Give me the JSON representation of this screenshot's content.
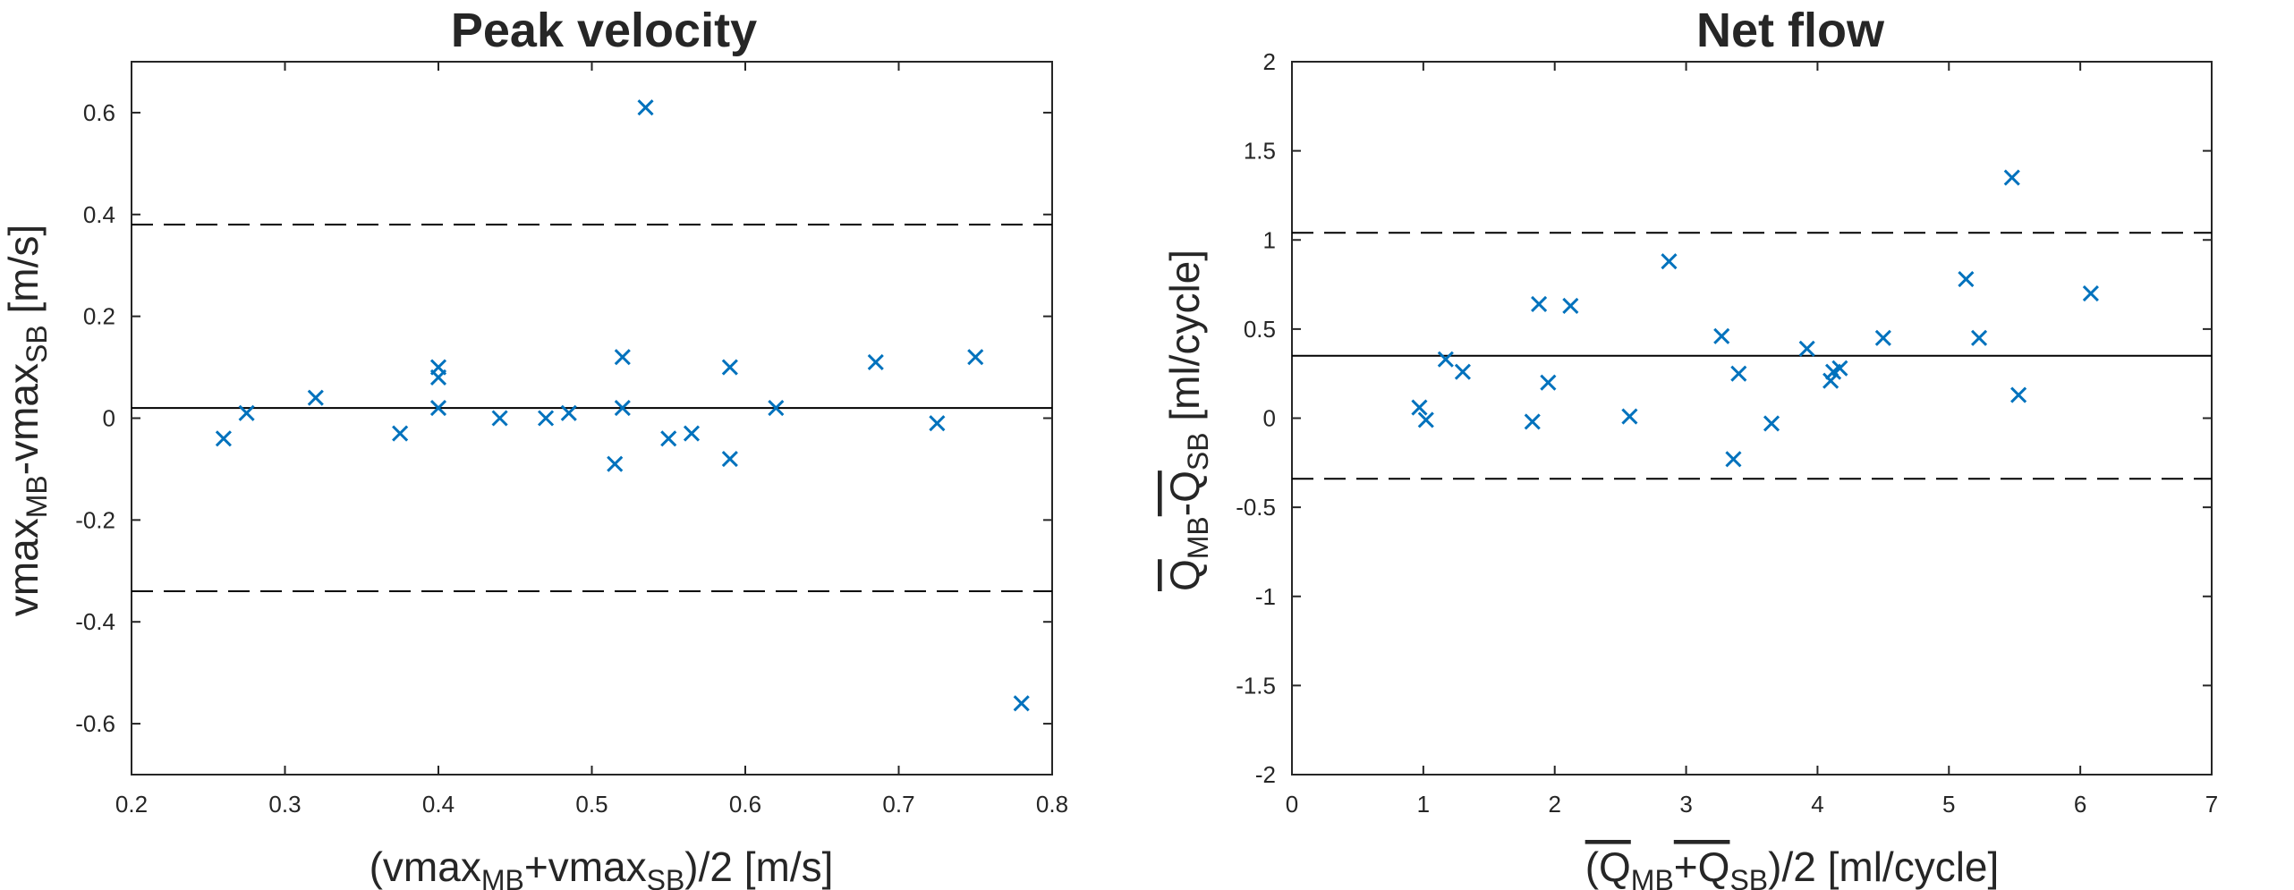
{
  "chart_data": [
    {
      "type": "scatter",
      "title": "Peak velocity",
      "xlabel": {
        "parts": [
          {
            "t": "(vmax"
          },
          {
            "t": "MB",
            "sub": true
          },
          {
            "t": "+vmax"
          },
          {
            "t": "SB",
            "sub": true
          },
          {
            "t": ")/2   [m/s]"
          }
        ]
      },
      "ylabel": {
        "parts": [
          {
            "t": "vmax"
          },
          {
            "t": "MB",
            "sub": true
          },
          {
            "t": "-vmax"
          },
          {
            "t": "SB",
            "sub": true
          },
          {
            "t": "   [m/s]"
          }
        ]
      },
      "xlim": [
        0.2,
        0.8
      ],
      "ylim": [
        -0.7,
        0.7
      ],
      "xticks": [
        0.2,
        0.3,
        0.4,
        0.5,
        0.6,
        0.7,
        0.8
      ],
      "xticklabels": [
        "0.2",
        "0.3",
        "0.4",
        "0.5",
        "0.6",
        "0.7",
        "0.8"
      ],
      "yticks": [
        -0.6,
        -0.4,
        -0.2,
        0,
        0.2,
        0.4,
        0.6
      ],
      "yticklabels": [
        "-0.6",
        "-0.4",
        "-0.2",
        "0",
        "0.2",
        "0.4",
        "0.6"
      ],
      "mean_line": 0.02,
      "limits_of_agreement": [
        0.38,
        -0.34
      ],
      "marker_color": "#0072BD",
      "points": [
        [
          0.26,
          -0.04
        ],
        [
          0.275,
          0.01
        ],
        [
          0.32,
          0.04
        ],
        [
          0.375,
          -0.03
        ],
        [
          0.4,
          0.1
        ],
        [
          0.4,
          0.08
        ],
        [
          0.4,
          0.02
        ],
        [
          0.44,
          0.0
        ],
        [
          0.47,
          0.0
        ],
        [
          0.485,
          0.01
        ],
        [
          0.515,
          -0.09
        ],
        [
          0.52,
          0.12
        ],
        [
          0.52,
          0.02
        ],
        [
          0.535,
          0.61
        ],
        [
          0.55,
          -0.04
        ],
        [
          0.565,
          -0.03
        ],
        [
          0.59,
          0.1
        ],
        [
          0.59,
          -0.08
        ],
        [
          0.62,
          0.02
        ],
        [
          0.685,
          0.11
        ],
        [
          0.725,
          -0.01
        ],
        [
          0.75,
          0.12
        ],
        [
          0.78,
          -0.56
        ]
      ]
    },
    {
      "type": "scatter",
      "title": "Net flow",
      "xlabel": {
        "parts": [
          {
            "t": "(Q",
            "bar": true
          },
          {
            "t": "MB",
            "sub": true
          },
          {
            "t": "+Q",
            "bar": true
          },
          {
            "t": "SB",
            "sub": true
          },
          {
            "t": ")/2   [ml/cycle]"
          }
        ]
      },
      "ylabel": {
        "parts": [
          {
            "t": "Q",
            "bar": true
          },
          {
            "t": "MB",
            "sub": true
          },
          {
            "t": "-Q",
            "bar": true
          },
          {
            "t": "SB",
            "sub": true
          },
          {
            "t": "  [ml/cycle]"
          }
        ]
      },
      "xlim": [
        0,
        7
      ],
      "ylim": [
        -2,
        2
      ],
      "xticks": [
        0,
        1,
        2,
        3,
        4,
        5,
        6,
        7
      ],
      "xticklabels": [
        "0",
        "1",
        "2",
        "3",
        "4",
        "5",
        "6",
        "7"
      ],
      "yticks": [
        -2,
        -1.5,
        -1,
        -0.5,
        0,
        0.5,
        1,
        1.5,
        2
      ],
      "yticklabels": [
        "-2",
        "-1.5",
        "-1",
        "-0.5",
        "0",
        "0.5",
        "1",
        "1.5",
        "2"
      ],
      "mean_line": 0.35,
      "limits_of_agreement": [
        1.04,
        -0.34
      ],
      "marker_color": "#0072BD",
      "points": [
        [
          0.97,
          0.06
        ],
        [
          1.02,
          -0.01
        ],
        [
          1.17,
          0.33
        ],
        [
          1.3,
          0.26
        ],
        [
          1.83,
          -0.02
        ],
        [
          1.88,
          0.64
        ],
        [
          1.95,
          0.2
        ],
        [
          2.12,
          0.63
        ],
        [
          2.57,
          0.01
        ],
        [
          2.87,
          0.88
        ],
        [
          3.27,
          0.46
        ],
        [
          3.36,
          -0.23
        ],
        [
          3.4,
          0.25
        ],
        [
          3.65,
          -0.03
        ],
        [
          3.92,
          0.39
        ],
        [
          4.1,
          0.21
        ],
        [
          4.12,
          0.26
        ],
        [
          4.17,
          0.28
        ],
        [
          4.5,
          0.45
        ],
        [
          5.13,
          0.78
        ],
        [
          5.23,
          0.45
        ],
        [
          5.48,
          1.35
        ],
        [
          5.53,
          0.13
        ],
        [
          6.08,
          0.7
        ]
      ]
    }
  ]
}
